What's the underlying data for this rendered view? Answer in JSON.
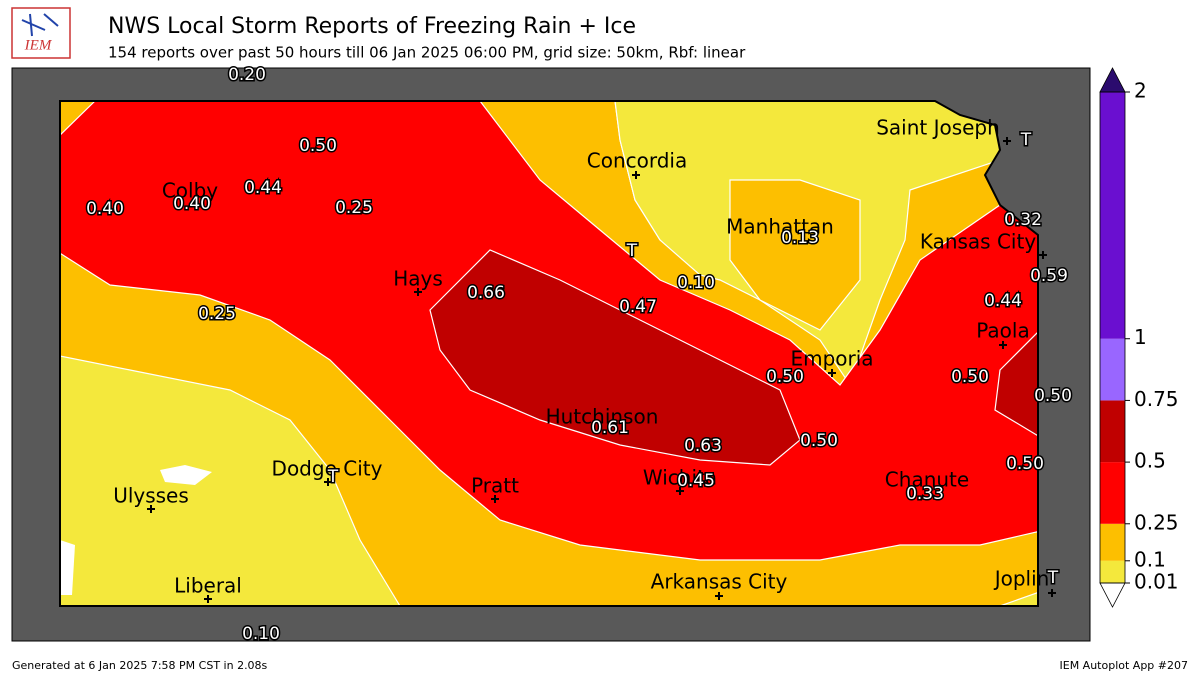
{
  "header": {
    "logo": "IEM",
    "title": "NWS Local Storm Reports of Freezing Rain + Ice",
    "subtitle": "154 reports over past 50 hours till 06 Jan 2025 06:00 PM, grid size: 50km, Rbf: linear"
  },
  "cities": [
    "Concordia",
    "Saint Joseph",
    "Colby",
    "Manhattan",
    "Kansas City",
    "Hays",
    "Paola",
    "Emporia",
    "Hutchinson",
    "Dodge City",
    "Ulysses",
    "Pratt",
    "Wichita",
    "Chanute",
    "Arkansas City",
    "Liberal",
    "Joplin"
  ],
  "reports": [
    "0.20",
    "0.50",
    "0.44",
    "0.40",
    "0.40",
    "0.25",
    "0.66",
    "0.47",
    "0.10",
    "0.13",
    "0.32",
    "0.59",
    "0.44",
    "0.50",
    "0.50",
    "0.50",
    "0.25",
    "0.61",
    "0.63",
    "0.50",
    "0.45",
    "0.50",
    "0.33",
    "0.10",
    "T",
    "T",
    "T",
    "T"
  ],
  "colorbar": {
    "lim": [
      0.01,
      2
    ],
    "ticks": [
      0.01,
      0.1,
      0.25,
      0.5,
      0.75,
      1,
      2
    ],
    "colors": [
      "#f4e83c",
      "#fdbf00",
      "#ff0000",
      "#c00000",
      "#9966ff",
      "#6a0fd0"
    ],
    "under_color": "#ffffff",
    "over_color": "#2b0b6e"
  },
  "footer": {
    "left": "Generated at 6 Jan 2025 7:58 PM CST in 2.08s",
    "right": "IEM Autoplot App #207"
  }
}
